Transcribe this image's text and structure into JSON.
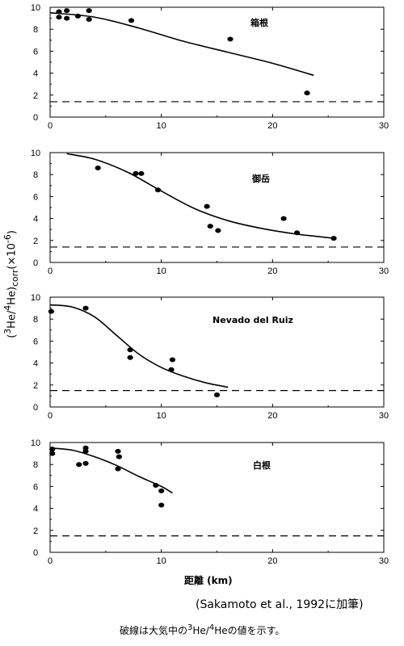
{
  "figure": {
    "ylabel_prefix": "(",
    "ylabel_sup1": "3",
    "ylabel_he1": "He/",
    "ylabel_sup2": "4",
    "ylabel_he2": "He)",
    "ylabel_sub": "corr",
    "ylabel_mult": "(×10",
    "ylabel_exp": "-6",
    "ylabel_close": ")",
    "xlabel": "距離 (km)",
    "credit": "(Sakamoto et al., 1992に加筆)",
    "caption_pre": "破線は大気中の",
    "caption_sup1": "3",
    "caption_mid": "He/",
    "caption_sup2": "4",
    "caption_post": "Heの値を示す。"
  },
  "chart_data": [
    {
      "type": "scatter",
      "panel_label": "箱根",
      "xlim": [
        0,
        30
      ],
      "ylim": [
        0,
        10
      ],
      "xticks": [
        "0",
        "10",
        "20",
        "30"
      ],
      "yticks": [
        "0",
        "2",
        "4",
        "6",
        "8",
        "10"
      ],
      "points": [
        [
          0.8,
          9.6
        ],
        [
          0.8,
          9.1
        ],
        [
          1.5,
          9.7
        ],
        [
          1.5,
          9.0
        ],
        [
          2.5,
          9.2
        ],
        [
          3.5,
          9.7
        ],
        [
          3.5,
          8.9
        ],
        [
          7.3,
          8.8
        ],
        [
          16.2,
          7.1
        ],
        [
          23.1,
          2.2
        ]
      ],
      "fit_curve": [
        [
          0,
          9.5
        ],
        [
          4,
          9.1
        ],
        [
          8,
          8.1
        ],
        [
          12,
          6.9
        ],
        [
          16,
          5.9
        ],
        [
          20,
          4.9
        ],
        [
          23.7,
          3.8
        ]
      ],
      "atmospheric_ratio": 1.4
    },
    {
      "type": "scatter",
      "panel_label": "御岳",
      "xlim": [
        0,
        30
      ],
      "ylim": [
        0,
        10
      ],
      "xticks": [
        "0",
        "10",
        "20",
        "30"
      ],
      "yticks": [
        "0",
        "2",
        "4",
        "6",
        "8",
        "10"
      ],
      "points": [
        [
          4.3,
          8.6
        ],
        [
          7.7,
          8.1
        ],
        [
          8.2,
          8.1
        ],
        [
          9.7,
          6.6
        ],
        [
          14.1,
          5.1
        ],
        [
          14.4,
          3.3
        ],
        [
          15.1,
          2.9
        ],
        [
          21.0,
          4.0
        ],
        [
          22.2,
          2.7
        ],
        [
          25.5,
          2.2
        ]
      ],
      "fit_curve": [
        [
          1.5,
          9.9
        ],
        [
          4,
          9.4
        ],
        [
          7,
          8.2
        ],
        [
          10,
          6.5
        ],
        [
          13,
          4.9
        ],
        [
          16,
          3.8
        ],
        [
          19,
          3.1
        ],
        [
          22,
          2.6
        ],
        [
          25.5,
          2.2
        ]
      ],
      "atmospheric_ratio": 1.4
    },
    {
      "type": "scatter",
      "panel_label": "Nevado del Ruiz",
      "xlim": [
        0,
        30
      ],
      "ylim": [
        0,
        10
      ],
      "xticks": [
        "0",
        "10",
        "20",
        "30"
      ],
      "yticks": [
        "0",
        "2",
        "4",
        "6",
        "8",
        "10"
      ],
      "points": [
        [
          0.1,
          8.7
        ],
        [
          3.2,
          9.0
        ],
        [
          7.2,
          5.2
        ],
        [
          7.2,
          4.5
        ],
        [
          11.0,
          4.3
        ],
        [
          10.9,
          3.4
        ],
        [
          15.0,
          1.1
        ]
      ],
      "fit_curve": [
        [
          0,
          9.3
        ],
        [
          2,
          9.1
        ],
        [
          4,
          8.2
        ],
        [
          6,
          6.5
        ],
        [
          8,
          4.8
        ],
        [
          10,
          3.6
        ],
        [
          12,
          2.8
        ],
        [
          14,
          2.2
        ],
        [
          16,
          1.8
        ]
      ],
      "atmospheric_ratio": 1.5
    },
    {
      "type": "scatter",
      "panel_label": "白根",
      "xlim": [
        0,
        30
      ],
      "ylim": [
        0,
        10
      ],
      "xticks": [
        "0",
        "10",
        "20",
        "30"
      ],
      "yticks": [
        "0",
        "2",
        "4",
        "6",
        "8",
        "10"
      ],
      "points": [
        [
          0.2,
          9.4
        ],
        [
          0.2,
          9.0
        ],
        [
          2.6,
          8.0
        ],
        [
          3.2,
          9.5
        ],
        [
          3.2,
          9.2
        ],
        [
          3.2,
          8.1
        ],
        [
          6.1,
          9.2
        ],
        [
          6.2,
          8.7
        ],
        [
          6.1,
          7.6
        ],
        [
          9.5,
          6.1
        ],
        [
          10.0,
          5.6
        ],
        [
          10.0,
          4.3
        ]
      ],
      "fit_curve": [
        [
          0,
          9.5
        ],
        [
          2,
          9.3
        ],
        [
          4,
          8.7
        ],
        [
          6,
          7.9
        ],
        [
          8,
          6.9
        ],
        [
          10,
          6.0
        ],
        [
          11,
          5.4
        ]
      ],
      "atmospheric_ratio": 1.5
    }
  ]
}
